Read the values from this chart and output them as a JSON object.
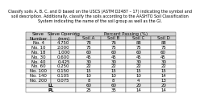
{
  "title_lines": [
    "Classify soils A, B, C, and D based on the USCS (ASTM D2487 – 17) indicating the symbol and",
    "soil description. Additionally, classify the soils according to the AASHTO Soil Classification",
    "System indicating the name of the soil group as well as the GI."
  ],
  "header_row1_cols": [
    "Sieve\nNumber",
    "Sieve Opening\n(mm)",
    "Percent Passing (%)"
  ],
  "header_row2_soil": [
    "Soil A",
    "Soil B",
    "Soil C",
    "Soil D"
  ],
  "rows": [
    [
      "No. 4",
      "4.750",
      "78",
      "76",
      "88",
      "88"
    ],
    [
      "No. 10",
      "2.000",
      "75",
      "75",
      "75",
      "75"
    ],
    [
      "No. 18",
      "1.000",
      "60",
      "60",
      "60",
      "60"
    ],
    [
      "No. 30",
      "0.600",
      "45",
      "45",
      "45",
      "45"
    ],
    [
      "No. 40",
      "0.425",
      "30",
      "30",
      "30",
      "30"
    ],
    [
      "No. 60",
      "0.250",
      "22",
      "22",
      "22",
      "22"
    ],
    [
      "No. 100",
      "0.150",
      "15",
      "15",
      "15",
      "15"
    ],
    [
      "No. 140",
      "0.105",
      "10",
      "10",
      "10",
      "14"
    ],
    [
      "No. 200",
      "0.075",
      "8",
      "8",
      "4",
      "13"
    ]
  ],
  "extra_rows": [
    [
      "LL",
      "60",
      "60",
      "20",
      "20"
    ],
    [
      "PL",
      "25",
      "35",
      "14",
      "14"
    ]
  ],
  "title_fontsize": 3.5,
  "header_fontsize": 4.0,
  "cell_fontsize": 3.9,
  "header_bg": "#d4d4d4",
  "cell_bg_even": "#eeeeee",
  "cell_bg_odd": "#ffffff",
  "border_color": "#555555",
  "border_lw": 0.35
}
